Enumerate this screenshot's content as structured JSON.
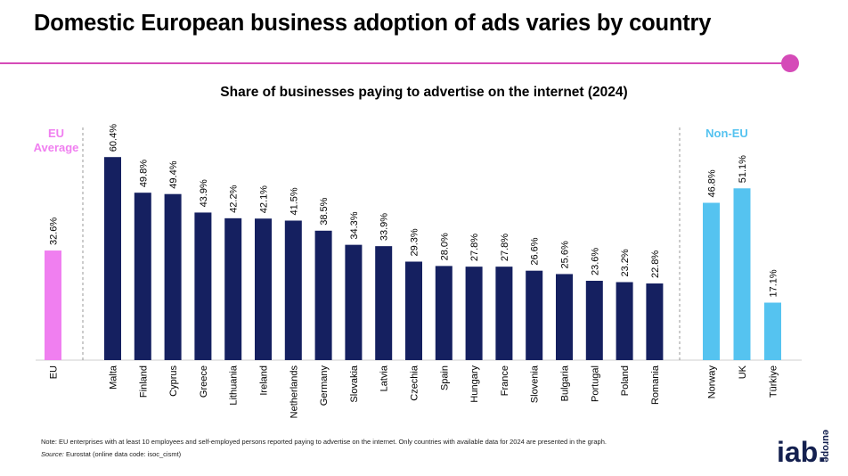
{
  "header": {
    "title": "Domestic European business adoption of ads varies by country",
    "accent_color": "#d54bb8"
  },
  "chart_data": {
    "type": "bar",
    "title": "Share of businesses paying to advertise on the internet (2024)",
    "xlabel": "",
    "ylabel": "",
    "ylim": [
      0,
      70
    ],
    "groups": [
      {
        "label": "EU\nAverage",
        "color": "#f07ff0",
        "label_color": "#f07ff0",
        "categories": [
          "EU"
        ],
        "values": [
          32.6
        ]
      },
      {
        "label": "",
        "color": "#152060",
        "label_color": "#152060",
        "categories": [
          "Malta",
          "Finland",
          "Cyprus",
          "Greece",
          "Lithuania",
          "Ireland",
          "Netherlands",
          "Germany",
          "Slovakia",
          "Latvia",
          "Czechia",
          "Spain",
          "Hungary",
          "France",
          "Slovenia",
          "Bulgaria",
          "Portugal",
          "Poland",
          "Romania"
        ],
        "values": [
          60.4,
          49.8,
          49.4,
          43.9,
          42.2,
          42.1,
          41.5,
          38.5,
          34.3,
          33.9,
          29.3,
          28.0,
          27.8,
          27.8,
          26.6,
          25.6,
          23.6,
          23.2,
          22.8
        ]
      },
      {
        "label": "Non-EU",
        "color": "#55c3f0",
        "label_color": "#55c3f0",
        "categories": [
          "Norway",
          "UK",
          "Türkiye"
        ],
        "values": [
          46.8,
          51.1,
          17.1
        ]
      }
    ],
    "value_suffix": "%"
  },
  "footer": {
    "note": "Note:  EU enterprises with at least 10 employees and self-employed persons reported paying to advertise on the internet. Only countries with available data for 2024 are presented in the graph.",
    "source_label": "Source:",
    "source_text": " Eurostat (online data code: isoc_cismt)"
  },
  "logo": {
    "main": "iab.",
    "sub": "europe"
  }
}
